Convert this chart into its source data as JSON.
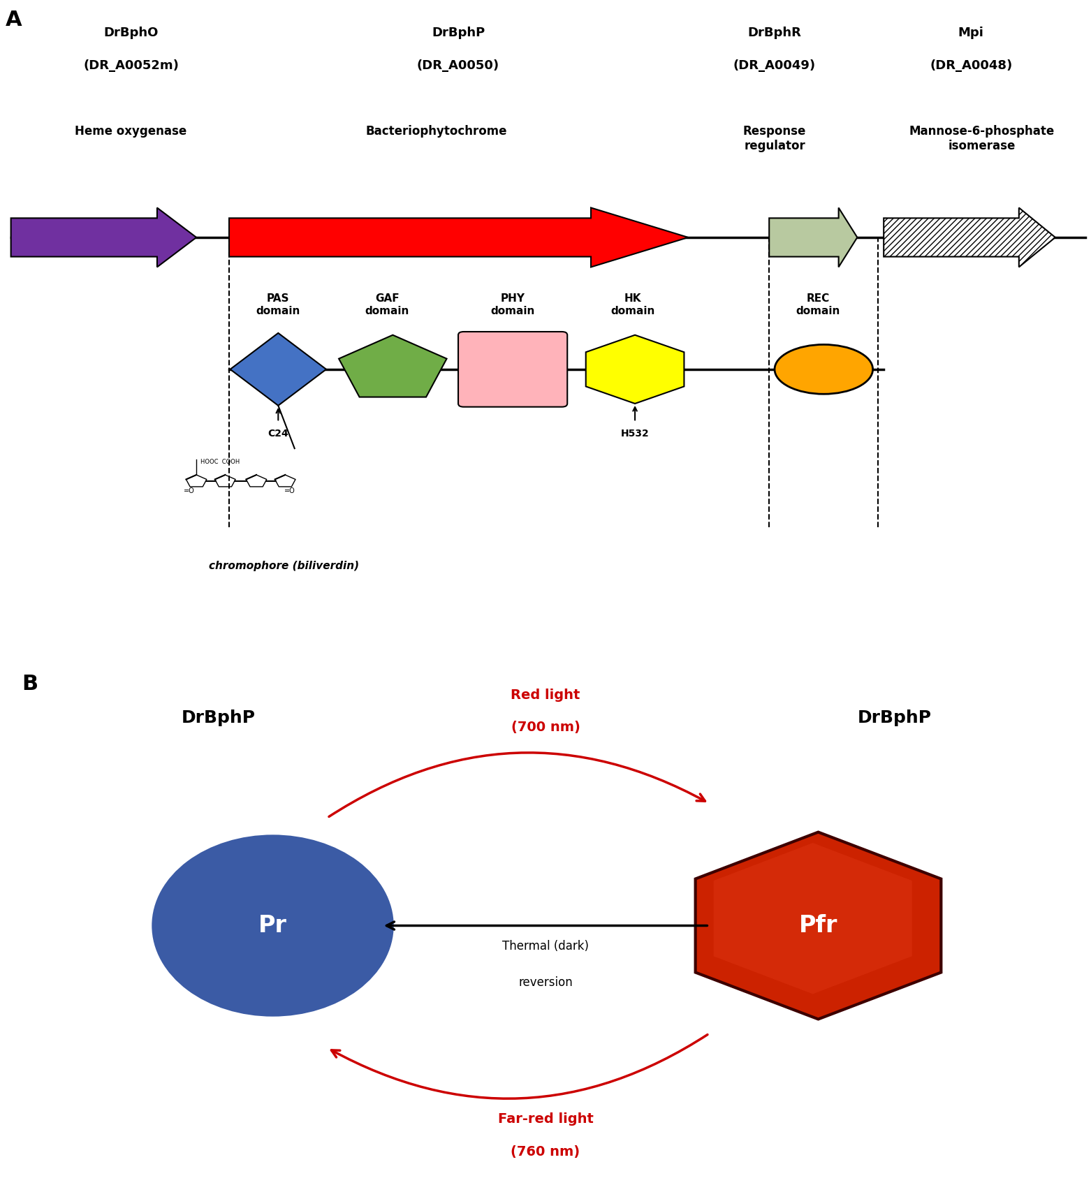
{
  "panel_A_label": "A",
  "panel_B_label": "B",
  "gene_names": [
    "DrBphO\n(DR_A0052m)",
    "DrBphP\n(DR_A0050)",
    "DrBphR\n(DR_A0049)",
    "Mpi\n(DR_A0048)"
  ],
  "gene_functions": [
    "Heme oxygenase",
    "Bacteriophytochrome",
    "Response\nregulator",
    "Mannose-6-phosphate\nisomerase"
  ],
  "domain_names": [
    "PAS\ndomain",
    "GAF\ndomain",
    "PHY\ndomain",
    "HK\ndomain",
    "REC\ndomain"
  ],
  "domain_colors": [
    "#4472C4",
    "#70AD47",
    "#FFB3BA",
    "#FFFF00",
    "#FFA500"
  ],
  "arrow_colors": [
    "#7030A0",
    "#FF0000",
    "#B2C4A0",
    "#FFFFFF"
  ],
  "red_light_label": "Red light\n(700 nm)",
  "far_red_label": "Far-red light\n(760 nm)",
  "thermal_label": "Thermal (dark)\nreversion",
  "pr_label": "Pr",
  "pfr_label": "Pfr",
  "drbphp_left": "DrBphP",
  "drbphp_right": "DrBphP",
  "pr_color": "#3B5BA5",
  "pfr_color_dark": "#8B0000",
  "pfr_color_light": "#CC2200",
  "red_arrow_color": "#CC0000",
  "black_arrow_color": "#000000",
  "background_color": "#FFFFFF"
}
